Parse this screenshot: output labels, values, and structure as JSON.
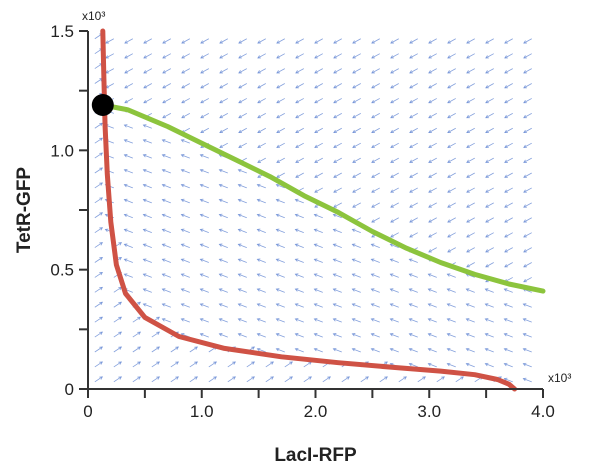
{
  "chart_data": {
    "type": "phase-plane",
    "xlabel": "LacI-RFP",
    "ylabel": "TetR-GFP",
    "x_multiplier_label": "x10³",
    "y_multiplier_label": "x10³",
    "xlim": [
      0,
      4.0
    ],
    "ylim": [
      0,
      1.5
    ],
    "x_ticks": [
      0,
      0.5,
      1.0,
      1.5,
      2.0,
      2.5,
      3.0,
      3.5,
      4.0
    ],
    "x_tick_labels": [
      {
        "value": 0,
        "label": "0"
      },
      {
        "value": 1.0,
        "label": "1.0"
      },
      {
        "value": 2.0,
        "label": "2.0"
      },
      {
        "value": 3.0,
        "label": "3.0"
      },
      {
        "value": 4.0,
        "label": "4.0"
      }
    ],
    "y_ticks": [
      0,
      0.25,
      0.5,
      0.75,
      1.0,
      1.25,
      1.5
    ],
    "y_tick_labels": [
      {
        "value": 0,
        "label": "0"
      },
      {
        "value": 0.5,
        "label": "0.5"
      },
      {
        "value": 1.0,
        "label": "1.0"
      },
      {
        "value": 1.5,
        "label": "1.5"
      }
    ],
    "series": [
      {
        "color": "#cf5245",
        "points": [
          [
            0.13,
            1.5
          ],
          [
            0.14,
            1.3
          ],
          [
            0.15,
            1.1
          ],
          [
            0.17,
            0.9
          ],
          [
            0.2,
            0.7
          ],
          [
            0.25,
            0.52
          ],
          [
            0.33,
            0.4
          ],
          [
            0.5,
            0.3
          ],
          [
            0.8,
            0.22
          ],
          [
            1.2,
            0.17
          ],
          [
            1.7,
            0.135
          ],
          [
            2.2,
            0.11
          ],
          [
            2.7,
            0.09
          ],
          [
            3.1,
            0.075
          ],
          [
            3.4,
            0.06
          ],
          [
            3.6,
            0.04
          ],
          [
            3.7,
            0.02
          ],
          [
            3.75,
            0.0
          ]
        ]
      },
      {
        "color": "#8cc43d",
        "points": [
          [
            0.13,
            1.19
          ],
          [
            0.35,
            1.17
          ],
          [
            0.7,
            1.1
          ],
          [
            1.0,
            1.03
          ],
          [
            1.3,
            0.96
          ],
          [
            1.6,
            0.89
          ],
          [
            1.9,
            0.81
          ],
          [
            2.2,
            0.74
          ],
          [
            2.5,
            0.66
          ],
          [
            2.8,
            0.59
          ],
          [
            3.1,
            0.53
          ],
          [
            3.4,
            0.48
          ],
          [
            3.7,
            0.44
          ],
          [
            4.0,
            0.41
          ]
        ]
      }
    ],
    "fixed_point": {
      "x": 0.13,
      "y": 1.19,
      "color": "#000000"
    },
    "vector_field": {
      "color": "#6f8fd6",
      "x_step": 0.167,
      "y_step": 0.0625
    }
  }
}
